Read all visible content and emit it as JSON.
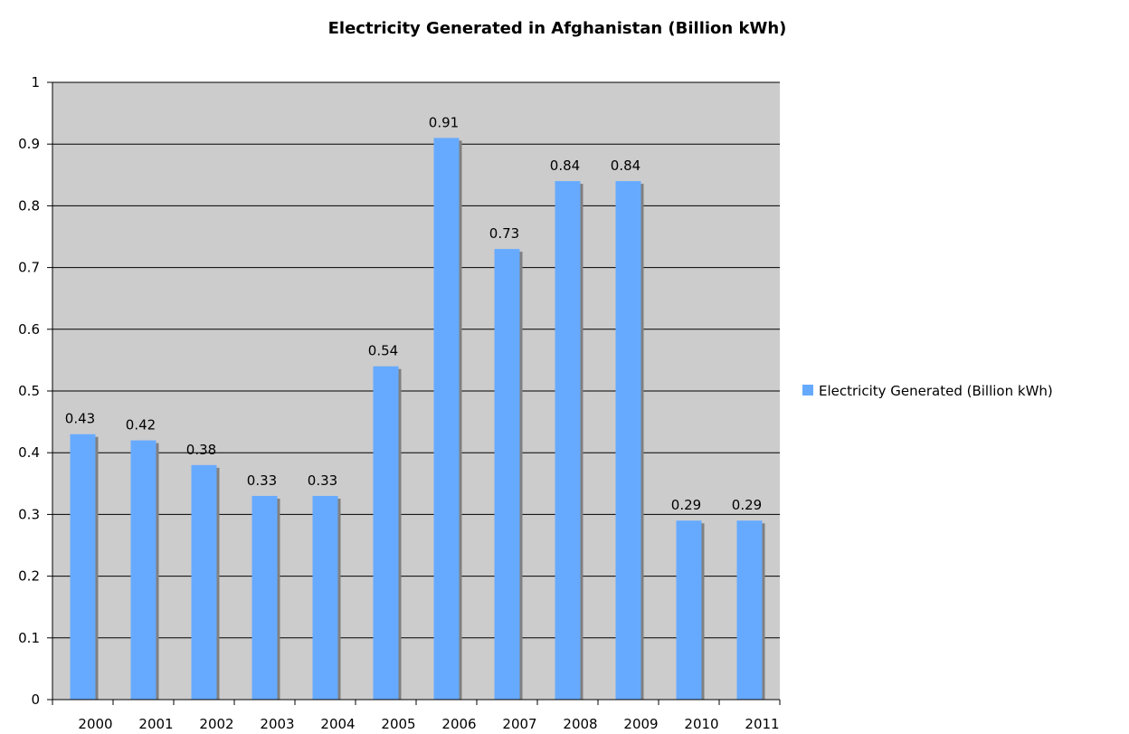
{
  "chart_data": {
    "type": "bar",
    "title": "Electricity Generated in Afghanistan (Billion kWh)",
    "xlabel": "",
    "ylabel": "",
    "categories": [
      "2000",
      "2001",
      "2002",
      "2003",
      "2004",
      "2005",
      "2006",
      "2007",
      "2008",
      "2009",
      "2010",
      "2011"
    ],
    "series": [
      {
        "name": "Electricity Generated (Billion kWh)",
        "values": [
          0.43,
          0.42,
          0.38,
          0.33,
          0.33,
          0.54,
          0.91,
          0.73,
          0.84,
          0.84,
          0.29,
          0.29
        ],
        "color": "#66aaff"
      }
    ],
    "ylim": [
      0,
      1
    ],
    "yticks": [
      0,
      0.1,
      0.2,
      0.3,
      0.4,
      0.5,
      0.6,
      0.7,
      0.8,
      0.9,
      1
    ],
    "ytick_labels": [
      "0",
      "0.1",
      "0.2",
      "0.3",
      "0.4",
      "0.5",
      "0.6",
      "0.7",
      "0.8",
      "0.9",
      "1"
    ],
    "data_labels": [
      "0.43",
      "0.42",
      "0.38",
      "0.33",
      "0.33",
      "0.54",
      "0.91",
      "0.73",
      "0.84",
      "0.84",
      "0.29",
      "0.29"
    ],
    "grid": true,
    "legend_position": "right",
    "plot_background": "#cccccc",
    "shadow_color": "#808080"
  }
}
